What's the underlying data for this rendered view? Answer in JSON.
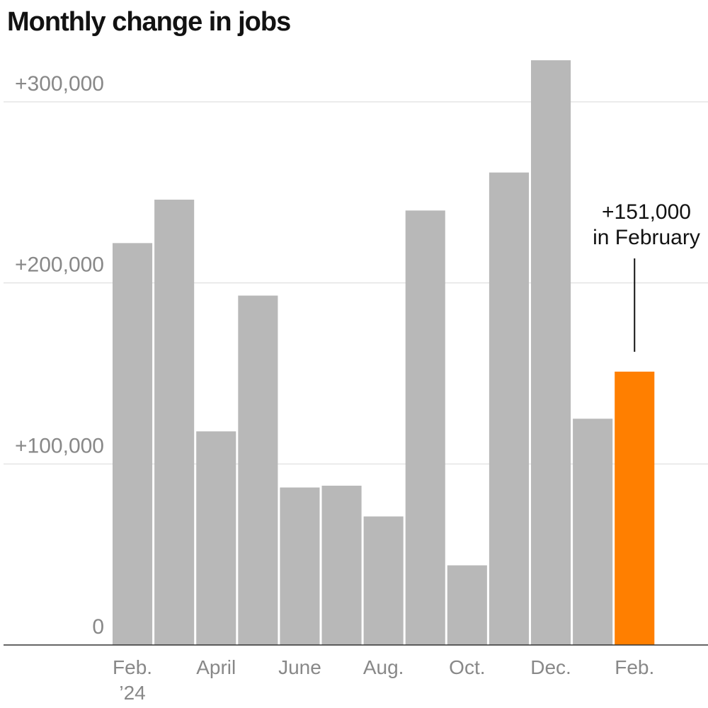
{
  "chart_data": {
    "type": "bar",
    "title": "Monthly change in jobs",
    "xlabel": "",
    "ylabel": "",
    "ylim": [
      0,
      325000
    ],
    "grid": true,
    "categories": [
      "Feb. 2024",
      "Mar. 2024",
      "Apr. 2024",
      "May 2024",
      "June 2024",
      "July 2024",
      "Aug. 2024",
      "Sep. 2024",
      "Oct. 2024",
      "Nov. 2024",
      "Dec. 2024",
      "Jan. 2025",
      "Feb. 2025"
    ],
    "values": [
      222000,
      246000,
      118000,
      193000,
      87000,
      88000,
      71000,
      240000,
      44000,
      261000,
      323000,
      125000,
      151000
    ],
    "highlight_index": 12,
    "colors": {
      "bar": "#b8b8b8",
      "highlight": "#ff7f00",
      "grid": "#d9d9d9",
      "axis": "#333333"
    },
    "y_ticks": [
      {
        "value": 0,
        "label": "0"
      },
      {
        "value": 100000,
        "label": "+100,000"
      },
      {
        "value": 200000,
        "label": "+200,000"
      },
      {
        "value": 300000,
        "label": "+300,000"
      }
    ],
    "x_ticks": [
      {
        "index": 0,
        "lines": [
          "Feb.",
          "’24"
        ]
      },
      {
        "index": 2,
        "lines": [
          "April"
        ]
      },
      {
        "index": 4,
        "lines": [
          "June"
        ]
      },
      {
        "index": 6,
        "lines": [
          "Aug."
        ]
      },
      {
        "index": 8,
        "lines": [
          "Oct."
        ]
      },
      {
        "index": 10,
        "lines": [
          "Dec."
        ]
      },
      {
        "index": 12,
        "lines": [
          "Feb."
        ]
      }
    ],
    "annotation": {
      "index": 12,
      "lines": [
        "+151,000",
        "in February"
      ]
    }
  }
}
